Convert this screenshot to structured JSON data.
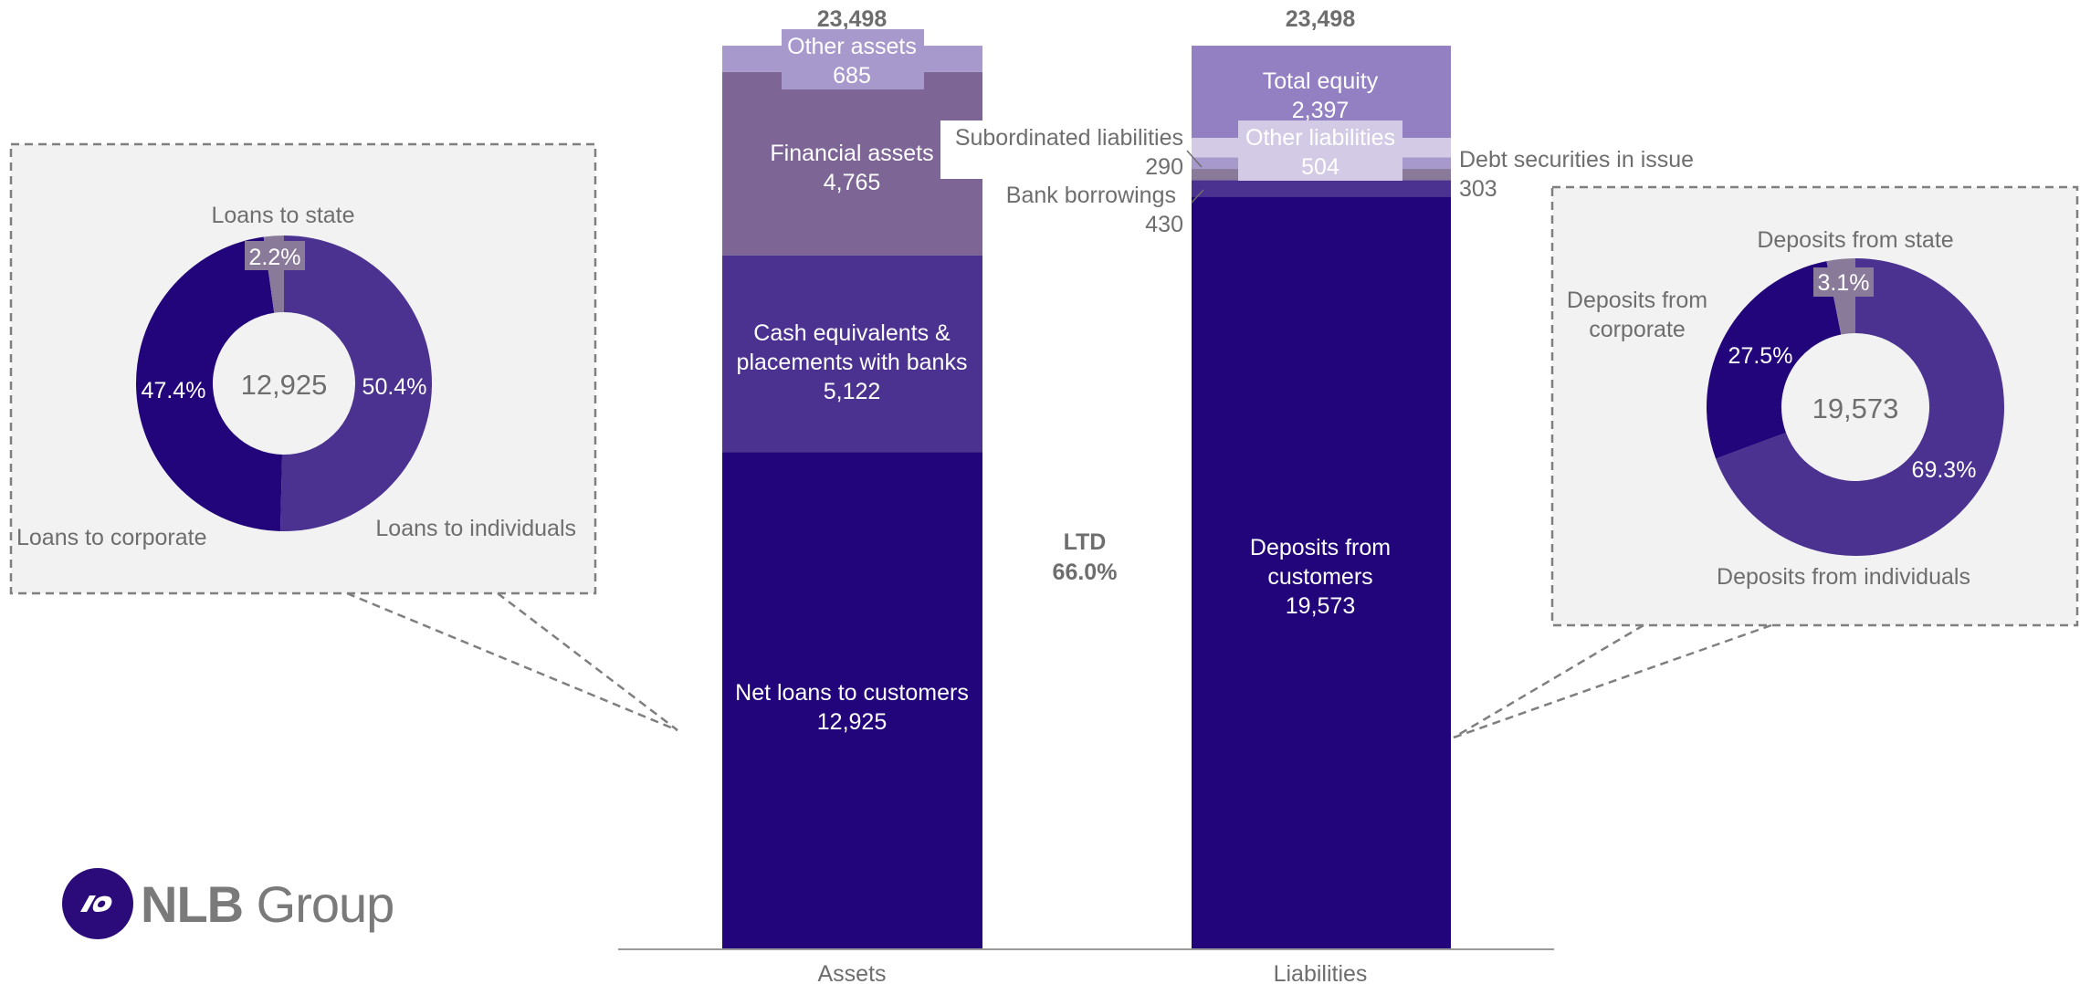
{
  "chart_data": [
    {
      "type": "stacked-bar",
      "categories": [
        "Assets",
        "Liabilities"
      ],
      "totals": [
        "23,498",
        "23,498"
      ],
      "center_label": {
        "line1": "LTD",
        "line2": "66.0%"
      },
      "assets": [
        {
          "name": "Net loans to customers",
          "value": 12925,
          "label": "12,925",
          "color": "#22057a"
        },
        {
          "name": "Cash equivalents & placements with banks",
          "value": 5122,
          "label": "5,122",
          "color": "#4b3290"
        },
        {
          "name": "Financial assets",
          "value": 4765,
          "label": "4,765",
          "color": "#7d6696"
        },
        {
          "name": "Other assets",
          "value": 685,
          "label": "685",
          "color": "#a899cc"
        }
      ],
      "liabilities": [
        {
          "name": "Deposits from customers",
          "value": 19573,
          "label": "19,573",
          "color": "#22057a"
        },
        {
          "name": "Bank borrowings",
          "value": 430,
          "label": "430",
          "color": "#4b3290"
        },
        {
          "name": "Subordinated liabilities",
          "value": 290,
          "label": "290",
          "color": "#8a7a9a"
        },
        {
          "name": "Debt securities in issue",
          "value": 303,
          "label": "303",
          "color": "#a899cc"
        },
        {
          "name": "Other liabilities",
          "value": 504,
          "label": "504",
          "color": "#d3cbe5"
        },
        {
          "name": "Total equity",
          "value": 2397,
          "label": "2,397",
          "color": "#9380c2"
        }
      ]
    },
    {
      "type": "pie",
      "center_value": "12,925",
      "slices": [
        {
          "name": "Loans to individuals",
          "value": 50.4,
          "label": "50.4%",
          "color": "#4b3290"
        },
        {
          "name": "Loans to corporate",
          "value": 47.4,
          "label": "47.4%",
          "color": "#22057a"
        },
        {
          "name": "Loans to state",
          "value": 2.2,
          "label": "2.2%",
          "color": "#8a7a9a"
        }
      ]
    },
    {
      "type": "pie",
      "center_value": "19,573",
      "slices": [
        {
          "name": "Deposits from individuals",
          "value": 69.3,
          "label": "69.3%",
          "color": "#4b3290"
        },
        {
          "name": "Deposits from corporate",
          "value": 27.5,
          "label": "27.5%",
          "color": "#22057a"
        },
        {
          "name": "Deposits from state",
          "value": 3.1,
          "label": "3.1%",
          "color": "#8a7a9a"
        }
      ]
    }
  ],
  "logo": {
    "text_bold": "NLB",
    "text_regular": " Group"
  }
}
